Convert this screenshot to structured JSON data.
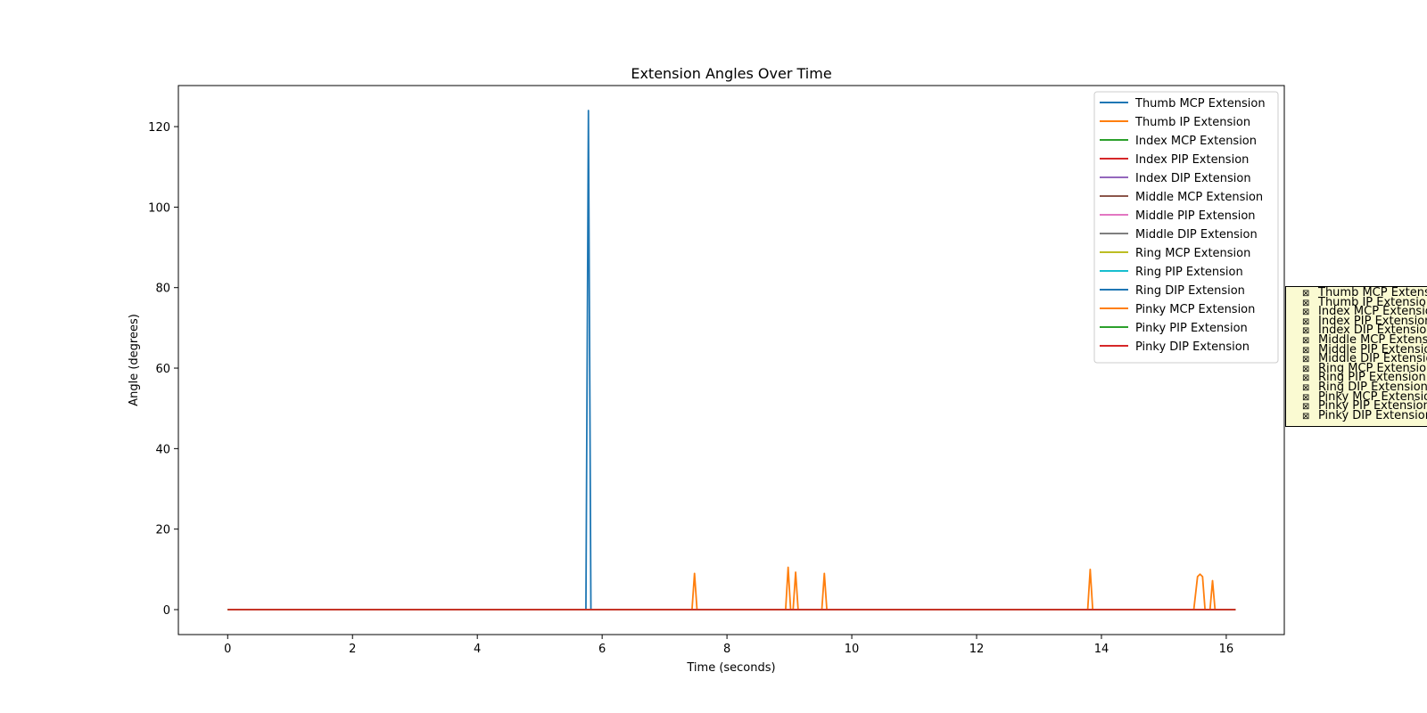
{
  "chart_data": {
    "type": "line",
    "title": "Extension Angles Over Time",
    "xlabel": "Time (seconds)",
    "ylabel": "Angle (degrees)",
    "xlim": [
      -0.79,
      16.93
    ],
    "ylim": [
      -6.2,
      130.2
    ],
    "xticks": [
      0,
      2,
      4,
      6,
      8,
      10,
      12,
      14,
      16
    ],
    "yticks": [
      0,
      20,
      40,
      60,
      80,
      100,
      120
    ],
    "grid": false,
    "legend_position": "top-right",
    "series": [
      {
        "name": "Thumb MCP Extension",
        "color": "#1f77b4",
        "x": [
          0,
          5.74,
          5.78,
          5.82,
          16.15
        ],
        "y": [
          0,
          0,
          124,
          0,
          0
        ]
      },
      {
        "name": "Thumb IP Extension",
        "color": "#ff7f0e",
        "x": [
          0,
          7.44,
          7.48,
          7.52,
          8.94,
          8.98,
          9.02,
          9.06,
          9.1,
          9.14,
          9.52,
          9.56,
          9.6,
          13.78,
          13.82,
          13.86,
          15.48,
          15.54,
          15.58,
          15.62,
          15.66,
          15.74,
          15.78,
          15.82,
          16.15
        ],
        "y": [
          0,
          0,
          9,
          0,
          0,
          10.5,
          0,
          0,
          9.3,
          0,
          0,
          9,
          0,
          0,
          10,
          0,
          0,
          8.2,
          8.8,
          8.2,
          0,
          0,
          7.2,
          0,
          0
        ]
      },
      {
        "name": "Index MCP Extension",
        "color": "#2ca02c",
        "x": [
          0,
          16.15
        ],
        "y": [
          0,
          0
        ]
      },
      {
        "name": "Index PIP Extension",
        "color": "#d62728",
        "x": [
          0,
          16.15
        ],
        "y": [
          0,
          0
        ]
      },
      {
        "name": "Index DIP Extension",
        "color": "#9467bd",
        "x": [
          0,
          16.15
        ],
        "y": [
          0,
          0
        ]
      },
      {
        "name": "Middle MCP Extension",
        "color": "#8c564b",
        "x": [
          0,
          16.15
        ],
        "y": [
          0,
          0
        ]
      },
      {
        "name": "Middle PIP Extension",
        "color": "#e377c2",
        "x": [
          0,
          16.15
        ],
        "y": [
          0,
          0
        ]
      },
      {
        "name": "Middle DIP Extension",
        "color": "#7f7f7f",
        "x": [
          0,
          16.15
        ],
        "y": [
          0,
          0
        ]
      },
      {
        "name": "Ring MCP Extension",
        "color": "#bcbd22",
        "x": [
          0,
          16.15
        ],
        "y": [
          0,
          0
        ]
      },
      {
        "name": "Ring PIP Extension",
        "color": "#17becf",
        "x": [
          0,
          16.15
        ],
        "y": [
          0,
          0
        ]
      },
      {
        "name": "Ring DIP Extension",
        "color": "#1f77b4",
        "x": [
          0,
          16.15
        ],
        "y": [
          0,
          0
        ]
      },
      {
        "name": "Pinky MCP Extension",
        "color": "#ff7f0e",
        "x": [
          0,
          16.15
        ],
        "y": [
          0,
          0
        ]
      },
      {
        "name": "Pinky PIP Extension",
        "color": "#2ca02c",
        "x": [
          0,
          16.15
        ],
        "y": [
          0,
          0
        ]
      },
      {
        "name": "Pinky DIP Extension",
        "color": "#d62728",
        "x": [
          0,
          16.15
        ],
        "y": [
          0,
          0
        ]
      }
    ]
  },
  "checklist": {
    "box_glyph": "⊠",
    "items": [
      "Thumb MCP Extension",
      "Thumb IP Extension",
      "Index MCP Extension",
      "Index PIP Extension",
      "Index DIP Extension",
      "Middle MCP Extension",
      "Middle PIP Extension",
      "Middle DIP Extension",
      "Ring MCP Extension",
      "Ring PIP Extension",
      "Ring DIP Extension",
      "Pinky MCP Extension",
      "Pinky PIP Extension",
      "Pinky DIP Extension"
    ]
  }
}
